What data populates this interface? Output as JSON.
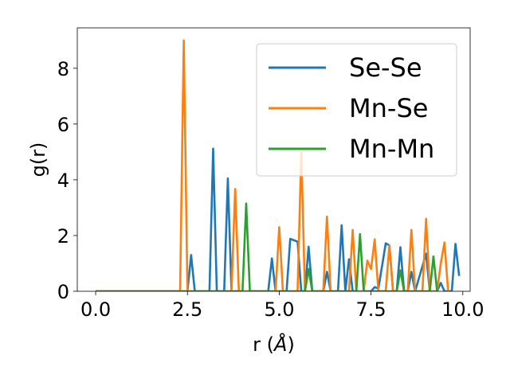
{
  "chart_data": {
    "type": "line",
    "xlabel": "r (",
    "xlabel_unit": "Å",
    "xlabel_close": ")",
    "ylabel": "g(r)",
    "xlim": [
      -0.5,
      10.2
    ],
    "ylim": [
      0,
      9.45
    ],
    "xticks": [
      0.0,
      2.5,
      5.0,
      7.5,
      10.0
    ],
    "xtick_labels": [
      "0.0",
      "2.5",
      "5.0",
      "7.5",
      "10.0"
    ],
    "yticks": [
      0,
      2,
      4,
      6,
      8
    ],
    "ytick_labels": [
      "0",
      "2",
      "4",
      "6",
      "8"
    ],
    "grid": false,
    "legend_position": "top-right",
    "series": [
      {
        "name": "Se-Se",
        "color": "#1f77b4",
        "points": [
          [
            0,
            0
          ],
          [
            2.5,
            0
          ],
          [
            2.6,
            1.3
          ],
          [
            2.7,
            0
          ],
          [
            3.1,
            0
          ],
          [
            3.2,
            5.12
          ],
          [
            3.3,
            0
          ],
          [
            3.5,
            0
          ],
          [
            3.6,
            4.05
          ],
          [
            3.7,
            0
          ],
          [
            4.7,
            0
          ],
          [
            4.8,
            1.18
          ],
          [
            4.9,
            0
          ],
          [
            5.2,
            0
          ],
          [
            5.3,
            1.88
          ],
          [
            5.5,
            1.78
          ],
          [
            5.6,
            0
          ],
          [
            5.7,
            0
          ],
          [
            5.8,
            1.6
          ],
          [
            5.9,
            0
          ],
          [
            6.2,
            0
          ],
          [
            6.3,
            0.7
          ],
          [
            6.4,
            0
          ],
          [
            6.6,
            0
          ],
          [
            6.7,
            2.37
          ],
          [
            6.8,
            0
          ],
          [
            6.9,
            1.15
          ],
          [
            7.0,
            0
          ],
          [
            7.5,
            0
          ],
          [
            7.6,
            0.15
          ],
          [
            7.7,
            0.1
          ],
          [
            7.8,
            0.9
          ],
          [
            7.9,
            1.72
          ],
          [
            8.0,
            1.65
          ],
          [
            8.1,
            0
          ],
          [
            8.2,
            0
          ],
          [
            8.3,
            1.58
          ],
          [
            8.4,
            0
          ],
          [
            8.5,
            0
          ],
          [
            8.6,
            0.7
          ],
          [
            8.7,
            0
          ],
          [
            9.0,
            1.35
          ],
          [
            9.1,
            0
          ],
          [
            9.3,
            0
          ],
          [
            9.4,
            0.3
          ],
          [
            9.5,
            0
          ],
          [
            9.7,
            0
          ],
          [
            9.8,
            1.7
          ],
          [
            9.9,
            0.55
          ]
        ]
      },
      {
        "name": "Mn-Se",
        "color": "#ff7f0e",
        "points": [
          [
            0,
            0
          ],
          [
            2.3,
            0
          ],
          [
            2.4,
            9.0
          ],
          [
            2.5,
            0
          ],
          [
            3.7,
            0
          ],
          [
            3.8,
            3.67
          ],
          [
            3.9,
            0
          ],
          [
            4.9,
            0
          ],
          [
            5.0,
            2.3
          ],
          [
            5.1,
            0
          ],
          [
            5.5,
            0
          ],
          [
            5.6,
            5.0
          ],
          [
            5.7,
            0
          ],
          [
            6.2,
            0
          ],
          [
            6.3,
            2.68
          ],
          [
            6.4,
            0
          ],
          [
            6.9,
            0
          ],
          [
            7.0,
            2.2
          ],
          [
            7.1,
            0
          ],
          [
            7.3,
            0
          ],
          [
            7.4,
            1.1
          ],
          [
            7.5,
            0.8
          ],
          [
            7.6,
            1.86
          ],
          [
            7.7,
            0
          ],
          [
            7.9,
            0
          ],
          [
            8.0,
            1.65
          ],
          [
            8.1,
            0
          ],
          [
            8.5,
            0
          ],
          [
            8.6,
            2.2
          ],
          [
            8.7,
            0
          ],
          [
            8.9,
            0
          ],
          [
            9.0,
            2.6
          ],
          [
            9.1,
            0
          ],
          [
            9.3,
            0
          ],
          [
            9.4,
            1.0
          ],
          [
            9.5,
            1.75
          ],
          [
            9.6,
            0
          ]
        ]
      },
      {
        "name": "Mn-Mn",
        "color": "#2ca02c",
        "points": [
          [
            0,
            0
          ],
          [
            4.0,
            0
          ],
          [
            4.1,
            3.15
          ],
          [
            4.2,
            0
          ],
          [
            5.7,
            0
          ],
          [
            5.8,
            0.8
          ],
          [
            5.9,
            0
          ],
          [
            7.1,
            0
          ],
          [
            7.2,
            2.05
          ],
          [
            7.3,
            0
          ],
          [
            8.2,
            0
          ],
          [
            8.3,
            0.75
          ],
          [
            8.4,
            0
          ],
          [
            9.1,
            0
          ],
          [
            9.2,
            1.25
          ],
          [
            9.3,
            0
          ]
        ]
      }
    ]
  }
}
